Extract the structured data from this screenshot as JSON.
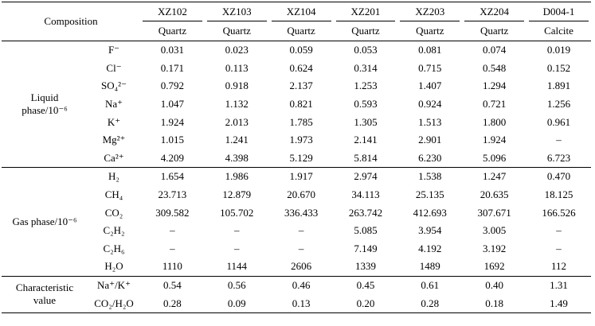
{
  "header": {
    "composition": "Composition",
    "samples": [
      "XZ102",
      "XZ103",
      "XZ104",
      "XZ201",
      "XZ203",
      "XZ204",
      "D004-1"
    ],
    "minerals": [
      "Quartz",
      "Quartz",
      "Quartz",
      "Quartz",
      "Quartz",
      "Quartz",
      "Calcite"
    ]
  },
  "groups": [
    {
      "label": "Liquid phase/10⁻⁶",
      "rows": [
        {
          "species": "F⁻",
          "values": [
            "0.031",
            "0.023",
            "0.059",
            "0.053",
            "0.081",
            "0.074",
            "0.019"
          ]
        },
        {
          "species": "Cl⁻",
          "values": [
            "0.171",
            "0.113",
            "0.624",
            "0.314",
            "0.715",
            "0.548",
            "0.152"
          ]
        },
        {
          "species": "SO₄²⁻",
          "values": [
            "0.792",
            "0.918",
            "2.137",
            "1.253",
            "1.407",
            "1.294",
            "1.891"
          ]
        },
        {
          "species": "Na⁺",
          "values": [
            "1.047",
            "1.132",
            "0.821",
            "0.593",
            "0.924",
            "0.721",
            "1.256"
          ]
        },
        {
          "species": "K⁺",
          "values": [
            "1.924",
            "2.013",
            "1.785",
            "1.305",
            "1.513",
            "1.800",
            "0.961"
          ]
        },
        {
          "species": "Mg²⁺",
          "values": [
            "1.015",
            "1.241",
            "1.973",
            "2.141",
            "2.901",
            "1.924",
            "–"
          ]
        },
        {
          "species": "Ca²⁺",
          "values": [
            "4.209",
            "4.398",
            "5.129",
            "5.814",
            "6.230",
            "5.096",
            "6.723"
          ]
        }
      ]
    },
    {
      "label": "Gas phase/10⁻⁶",
      "rows": [
        {
          "species": "H₂",
          "values": [
            "1.654",
            "1.986",
            "1.917",
            "2.974",
            "1.538",
            "1.247",
            "0.470"
          ]
        },
        {
          "species": "CH₄",
          "values": [
            "23.713",
            "12.879",
            "20.670",
            "34.113",
            "25.135",
            "20.635",
            "18.125"
          ]
        },
        {
          "species": "CO₂",
          "values": [
            "309.582",
            "105.702",
            "336.433",
            "263.742",
            "412.693",
            "307.671",
            "166.526"
          ]
        },
        {
          "species": "C₂H₂",
          "values": [
            "–",
            "–",
            "–",
            "5.085",
            "3.954",
            "3.005",
            "–"
          ]
        },
        {
          "species": "C₂H₆",
          "values": [
            "–",
            "–",
            "–",
            "7.149",
            "4.192",
            "3.192",
            "–"
          ]
        },
        {
          "species": "H₂O",
          "values": [
            "1110",
            "1144",
            "2606",
            "1339",
            "1489",
            "1692",
            "112"
          ]
        }
      ]
    },
    {
      "label": "Characteristic value",
      "rows": [
        {
          "species": "Na⁺/K⁺",
          "values": [
            "0.54",
            "0.56",
            "0.46",
            "0.45",
            "0.61",
            "0.40",
            "1.31"
          ]
        },
        {
          "species": "CO₂/H₂O",
          "values": [
            "0.28",
            "0.09",
            "0.13",
            "0.20",
            "0.28",
            "0.18",
            "1.49"
          ]
        }
      ]
    }
  ]
}
